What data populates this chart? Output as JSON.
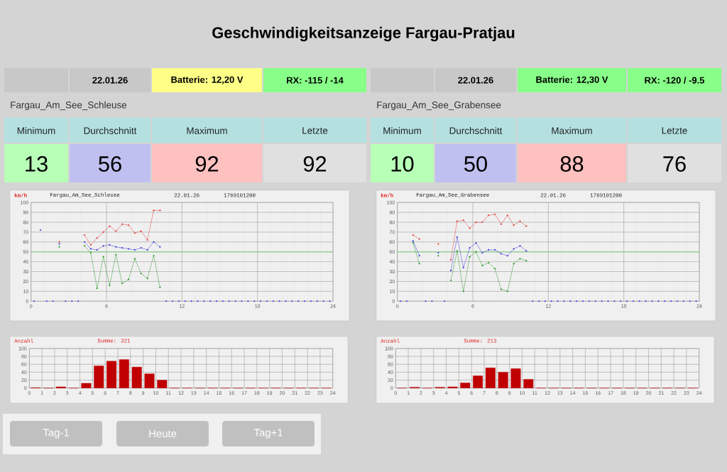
{
  "chart_data": [
    {
      "type": "other",
      "title": "Geschwindigkeitsanzeige Fargau-Pratjau",
      "annotations": [
        "22.01.26",
        "Batterie: 12,20 V",
        "RX: -115 / -14",
        "Fargau_Am_See_Schleuse",
        "Minimum",
        "Durchschnitt",
        "Maximum",
        "Letzte",
        "13",
        "56",
        "92",
        "92"
      ]
    },
    {
      "type": "line",
      "title": "Fargau_Am_See_Schleuse",
      "ylabel": "km/h",
      "annotations": [
        "22.01.26",
        "1769101200"
      ],
      "x": [
        0.25,
        0.75,
        1.25,
        1.75,
        2.25,
        2.75,
        3.25,
        3.75,
        4.25,
        4.75,
        5.25,
        5.75,
        6.25,
        6.75,
        7.25,
        7.75,
        8.25,
        8.75,
        9.25,
        9.75,
        10.25,
        10.75,
        11.25,
        11.75,
        12.25,
        12.75,
        13.25,
        13.75,
        14.25,
        14.75,
        15.25,
        15.75,
        16.25,
        16.75,
        17.25,
        17.75,
        18.25,
        18.75,
        19.25,
        19.75,
        20.25,
        20.75,
        21.25,
        21.75,
        22.25,
        22.75,
        23.25,
        23.75
      ],
      "series": [
        {
          "color": "#e03c3c",
          "values": [
            null,
            null,
            null,
            null,
            60,
            null,
            null,
            null,
            67,
            57,
            64,
            70,
            76,
            71,
            78,
            77,
            69,
            71,
            62,
            92,
            92,
            null,
            null,
            null,
            null,
            null,
            null,
            null,
            null,
            null,
            null,
            null,
            null,
            null,
            null,
            null,
            null,
            null,
            null,
            null,
            null,
            null,
            null,
            null,
            null,
            null,
            null,
            null
          ]
        },
        {
          "color": "#3c3cdc",
          "values": [
            null,
            72,
            null,
            null,
            58,
            null,
            null,
            null,
            60,
            53,
            52,
            56,
            57,
            55,
            54,
            53,
            52,
            54,
            52,
            60,
            55,
            null,
            null,
            null,
            null,
            null,
            null,
            null,
            null,
            null,
            null,
            null,
            null,
            null,
            null,
            null,
            null,
            null,
            null,
            null,
            null,
            null,
            null,
            null,
            null,
            null,
            null,
            null
          ]
        },
        {
          "color": "#2e9a2e",
          "values": [
            null,
            null,
            null,
            null,
            55,
            null,
            null,
            null,
            56,
            49,
            13,
            45,
            16,
            47,
            18,
            22,
            43,
            28,
            23,
            46,
            14,
            null,
            null,
            null,
            null,
            null,
            null,
            null,
            null,
            null,
            null,
            null,
            null,
            null,
            null,
            null,
            null,
            null,
            null,
            null,
            null,
            null,
            null,
            null,
            null,
            null,
            null,
            null
          ]
        },
        {
          "type": "scatter",
          "color": "#3c3cdc",
          "values": [
            0,
            null,
            0,
            0,
            null,
            0,
            0,
            0,
            null,
            null,
            null,
            null,
            null,
            null,
            null,
            null,
            null,
            null,
            null,
            null,
            null,
            0,
            0,
            0,
            0,
            0,
            0,
            0,
            0,
            0,
            0,
            0,
            0,
            0,
            0,
            0,
            0,
            0,
            0,
            0,
            0,
            0,
            0,
            0,
            0,
            0,
            0,
            0
          ]
        }
      ],
      "xlim": [
        0,
        24
      ],
      "xticks": [
        0,
        6,
        12,
        18,
        24
      ],
      "ylim": [
        0,
        100
      ],
      "yticks": [
        0,
        10,
        20,
        30,
        40,
        50,
        60,
        70,
        80,
        90,
        100
      ],
      "ref_lines": [
        {
          "axis": "y",
          "value": 50,
          "color": "#90d090"
        }
      ],
      "grid": true,
      "marker": "circle"
    },
    {
      "type": "histogram",
      "ylabel": "Anzahl",
      "annotations": [
        "Summe: 321"
      ],
      "color": "#c00000",
      "bins": [
        0,
        1,
        2,
        3,
        4,
        5,
        6,
        7,
        8,
        9,
        10,
        11,
        12,
        13,
        14,
        15,
        16,
        17,
        18,
        19,
        20,
        21,
        22,
        23,
        24
      ],
      "values": [
        1,
        0,
        3,
        0,
        12,
        56,
        68,
        72,
        53,
        36,
        20,
        0,
        0,
        0,
        0,
        0,
        0,
        0,
        0,
        0,
        0,
        0,
        0,
        0
      ],
      "xlim": [
        0,
        24
      ],
      "xticks": [
        0,
        1,
        2,
        3,
        4,
        5,
        6,
        7,
        8,
        9,
        10,
        11,
        12,
        13,
        14,
        15,
        16,
        17,
        18,
        19,
        20,
        21,
        22,
        23,
        24
      ],
      "ylim": [
        0,
        100
      ],
      "yticks": [
        0,
        20,
        40,
        60,
        80,
        100
      ],
      "grid": true
    },
    {
      "type": "other",
      "annotations": [
        "22.01.26",
        "Batterie: 12,30 V",
        "RX: -120 / -9.5",
        "Fargau_Am_See_Grabensee",
        "Minimum",
        "Durchschnitt",
        "Maximum",
        "Letzte",
        "10",
        "50",
        "88",
        "76"
      ]
    },
    {
      "type": "line",
      "title": "Fargau_Am_See_Grabensee",
      "ylabel": "km/h",
      "annotations": [
        "22.01.26",
        "1769101200"
      ],
      "x": [
        0.25,
        0.75,
        1.25,
        1.75,
        2.25,
        2.75,
        3.25,
        3.75,
        4.25,
        4.75,
        5.25,
        5.75,
        6.25,
        6.75,
        7.25,
        7.75,
        8.25,
        8.75,
        9.25,
        9.75,
        10.25,
        10.75,
        11.25,
        11.75,
        12.25,
        12.75,
        13.25,
        13.75,
        14.25,
        14.75,
        15.25,
        15.75,
        16.25,
        16.75,
        17.25,
        17.75,
        18.25,
        18.75,
        19.25,
        19.75,
        20.25,
        20.75,
        21.25,
        21.75,
        22.25,
        22.75,
        23.25,
        23.75
      ],
      "series": [
        {
          "color": "#e03c3c",
          "values": [
            null,
            null,
            67,
            63,
            null,
            null,
            58,
            null,
            42,
            81,
            82,
            74,
            80,
            80,
            87,
            88,
            78,
            87,
            77,
            81,
            76,
            null,
            null,
            null,
            null,
            null,
            null,
            null,
            null,
            null,
            null,
            null,
            null,
            null,
            null,
            null,
            null,
            null,
            null,
            null,
            null,
            null,
            null,
            null,
            null,
            null,
            null,
            null
          ]
        },
        {
          "color": "#3c3cdc",
          "values": [
            null,
            null,
            61,
            46,
            null,
            null,
            49,
            null,
            31,
            65,
            34,
            54,
            59,
            49,
            52,
            52,
            48,
            46,
            53,
            56,
            51,
            null,
            null,
            null,
            null,
            null,
            null,
            null,
            null,
            null,
            null,
            null,
            null,
            null,
            null,
            null,
            null,
            null,
            null,
            null,
            null,
            null,
            null,
            null,
            null,
            null,
            null,
            null
          ]
        },
        {
          "color": "#2e9a2e",
          "values": [
            null,
            null,
            59,
            38,
            null,
            null,
            46,
            null,
            21,
            51,
            10,
            45,
            50,
            36,
            39,
            33,
            12,
            10,
            38,
            43,
            41,
            null,
            null,
            null,
            null,
            null,
            null,
            null,
            null,
            null,
            null,
            null,
            null,
            null,
            null,
            null,
            null,
            null,
            null,
            null,
            null,
            null,
            null,
            null,
            null,
            null,
            null,
            null
          ]
        },
        {
          "type": "scatter",
          "color": "#3c3cdc",
          "values": [
            0,
            0,
            null,
            null,
            0,
            0,
            null,
            0,
            null,
            null,
            null,
            null,
            null,
            null,
            null,
            null,
            null,
            null,
            null,
            null,
            null,
            0,
            0,
            0,
            0,
            0,
            0,
            0,
            0,
            0,
            0,
            0,
            0,
            0,
            0,
            0,
            0,
            0,
            0,
            0,
            0,
            0,
            0,
            0,
            0,
            0,
            0,
            0
          ]
        }
      ],
      "xlim": [
        0,
        24
      ],
      "xticks": [
        0,
        6,
        12,
        18,
        24
      ],
      "ylim": [
        0,
        100
      ],
      "yticks": [
        0,
        10,
        20,
        30,
        40,
        50,
        60,
        70,
        80,
        90,
        100
      ],
      "ref_lines": [
        {
          "axis": "y",
          "value": 50,
          "color": "#90d090"
        }
      ],
      "grid": true,
      "marker": "circle"
    },
    {
      "type": "histogram",
      "ylabel": "Anzahl",
      "annotations": [
        "Summe: 213"
      ],
      "color": "#c00000",
      "bins": [
        0,
        1,
        2,
        3,
        4,
        5,
        6,
        7,
        8,
        9,
        10,
        11,
        12,
        13,
        14,
        15,
        16,
        17,
        18,
        19,
        20,
        21,
        22,
        23,
        24
      ],
      "values": [
        0,
        2,
        0,
        2,
        3,
        13,
        31,
        51,
        40,
        49,
        22,
        0,
        0,
        0,
        0,
        0,
        0,
        0,
        0,
        0,
        0,
        0,
        0,
        0
      ],
      "xlim": [
        0,
        24
      ],
      "xticks": [
        0,
        1,
        2,
        3,
        4,
        5,
        6,
        7,
        8,
        9,
        10,
        11,
        12,
        13,
        14,
        15,
        16,
        17,
        18,
        19,
        20,
        21,
        22,
        23,
        24
      ],
      "ylim": [
        0,
        100
      ],
      "yticks": [
        0,
        20,
        40,
        60,
        80,
        100
      ],
      "grid": true
    },
    {
      "type": "other",
      "annotations": [
        "Tag-1",
        "Heute",
        "Tag+1"
      ]
    }
  ]
}
